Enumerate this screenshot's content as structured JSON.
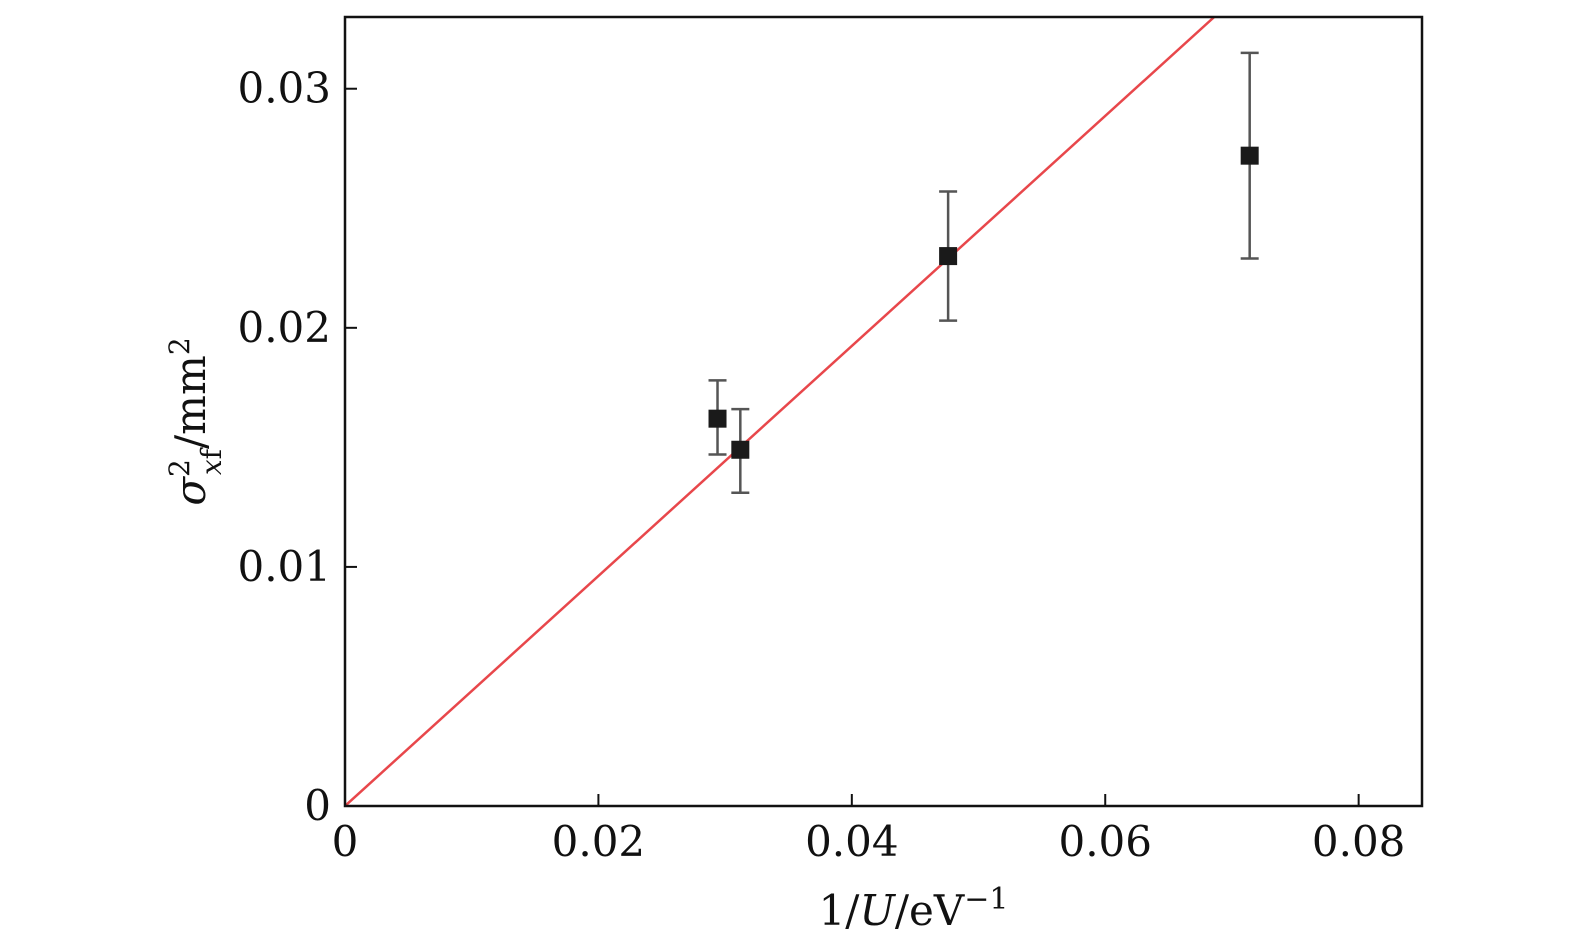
{
  "chart_data": {
    "type": "scatter",
    "xlabel": {
      "main": "1/",
      "var": "U",
      "unit": "/eV",
      "sup": "−1"
    },
    "ylabel": {
      "main": "σ",
      "sup": "2",
      "sub_it": "x",
      "sub": "f",
      "unit": "/mm",
      "unit_sup": "2"
    },
    "xlim": [
      0,
      0.085
    ],
    "ylim": [
      0,
      0.033
    ],
    "xticks": [
      0,
      0.02,
      0.04,
      0.06,
      0.08
    ],
    "xtick_labels": [
      "0",
      "0.02",
      "0.04",
      "0.06",
      "0.08"
    ],
    "yticks": [
      0,
      0.01,
      0.02,
      0.03
    ],
    "ytick_labels": [
      "0",
      "0.01",
      "0.02",
      "0.03"
    ],
    "grid": false,
    "series": [
      {
        "type": "scatter",
        "marker": "square",
        "color": "#1a1a1a",
        "errorbar_color": "#555555",
        "points": [
          {
            "x": 0.0294,
            "y": 0.0162,
            "err_low": 0.0147,
            "err_high": 0.0178
          },
          {
            "x": 0.0312,
            "y": 0.0149,
            "err_low": 0.0131,
            "err_high": 0.0166
          },
          {
            "x": 0.0476,
            "y": 0.023,
            "err_low": 0.0203,
            "err_high": 0.0257
          },
          {
            "x": 0.0714,
            "y": 0.0272,
            "err_low": 0.0229,
            "err_high": 0.0315
          }
        ]
      },
      {
        "type": "line",
        "color": "#e8474b",
        "x": [
          0,
          0.0686
        ],
        "y": [
          0,
          0.033
        ]
      }
    ]
  }
}
